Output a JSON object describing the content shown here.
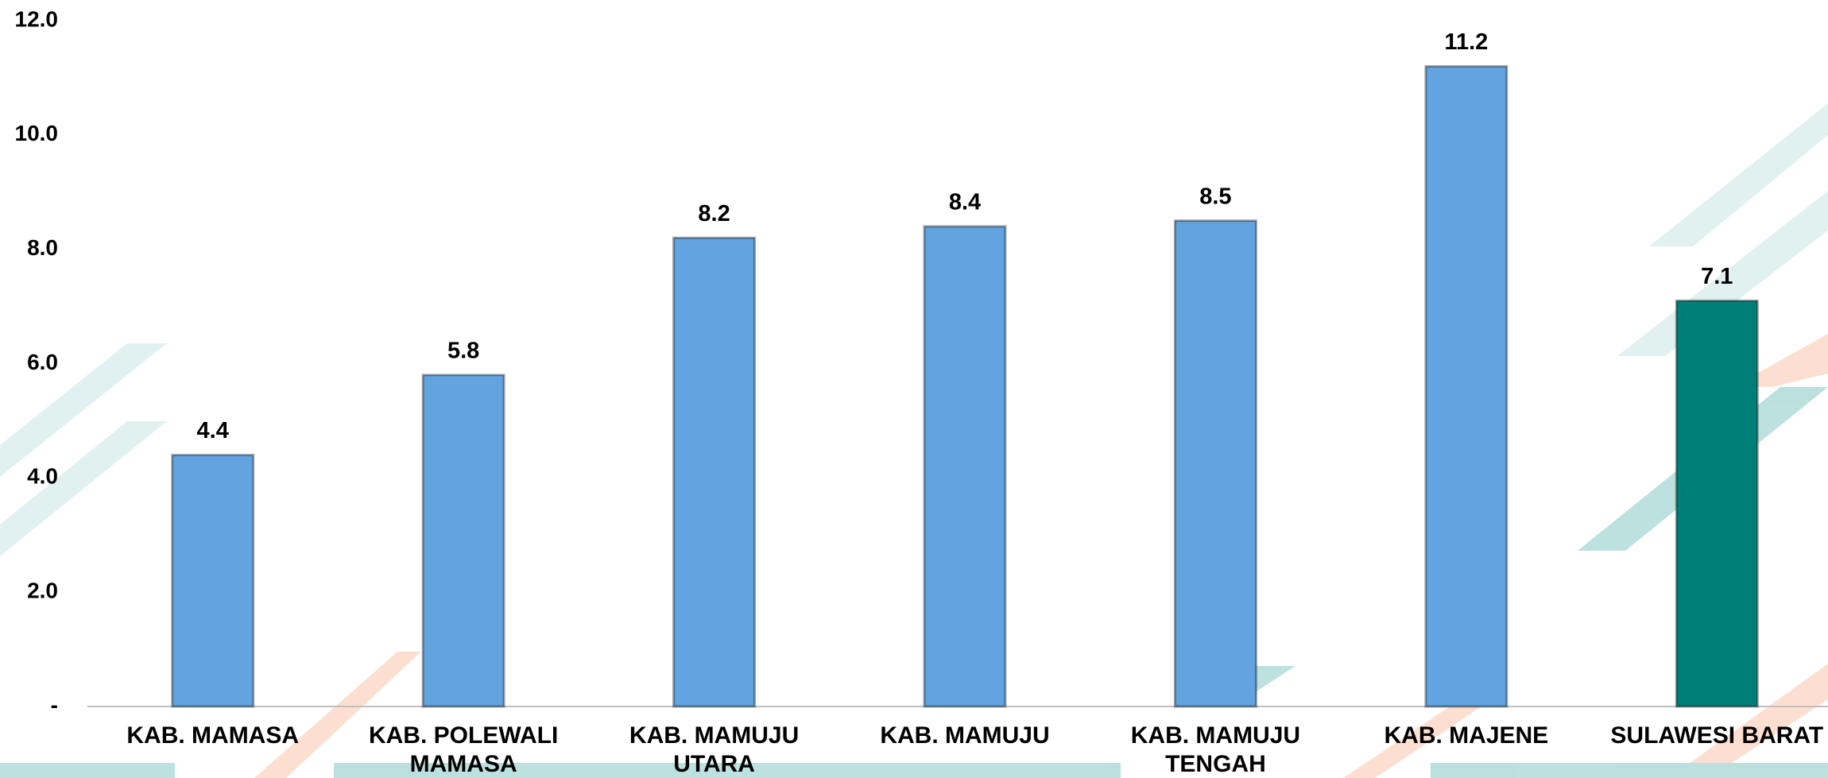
{
  "chart_data": {
    "type": "bar",
    "categories": [
      [
        "KAB. MAMASA"
      ],
      [
        "KAB. POLEWALI",
        "MAMASA"
      ],
      [
        "KAB. MAMUJU",
        "UTARA"
      ],
      [
        "KAB. MAMUJU"
      ],
      [
        "KAB. MAMUJU",
        "TENGAH"
      ],
      [
        "KAB. MAJENE"
      ],
      [
        "SULAWESI BARAT"
      ]
    ],
    "values": [
      4.4,
      5.8,
      8.2,
      8.4,
      8.5,
      11.2,
      7.1
    ],
    "colors": [
      "#63a4e0",
      "#63a4e0",
      "#63a4e0",
      "#63a4e0",
      "#63a4e0",
      "#63a4e0",
      "#007f78"
    ],
    "ylim": [
      0,
      12
    ],
    "yticks": [
      {
        "value": 0,
        "label": "-"
      },
      {
        "value": 2,
        "label": "2.0"
      },
      {
        "value": 4,
        "label": "4.0"
      },
      {
        "value": 6,
        "label": "6.0"
      },
      {
        "value": 8,
        "label": "8.0"
      },
      {
        "value": 10,
        "label": "10.0"
      },
      {
        "value": 12,
        "label": "12.0"
      }
    ],
    "grid": false
  }
}
